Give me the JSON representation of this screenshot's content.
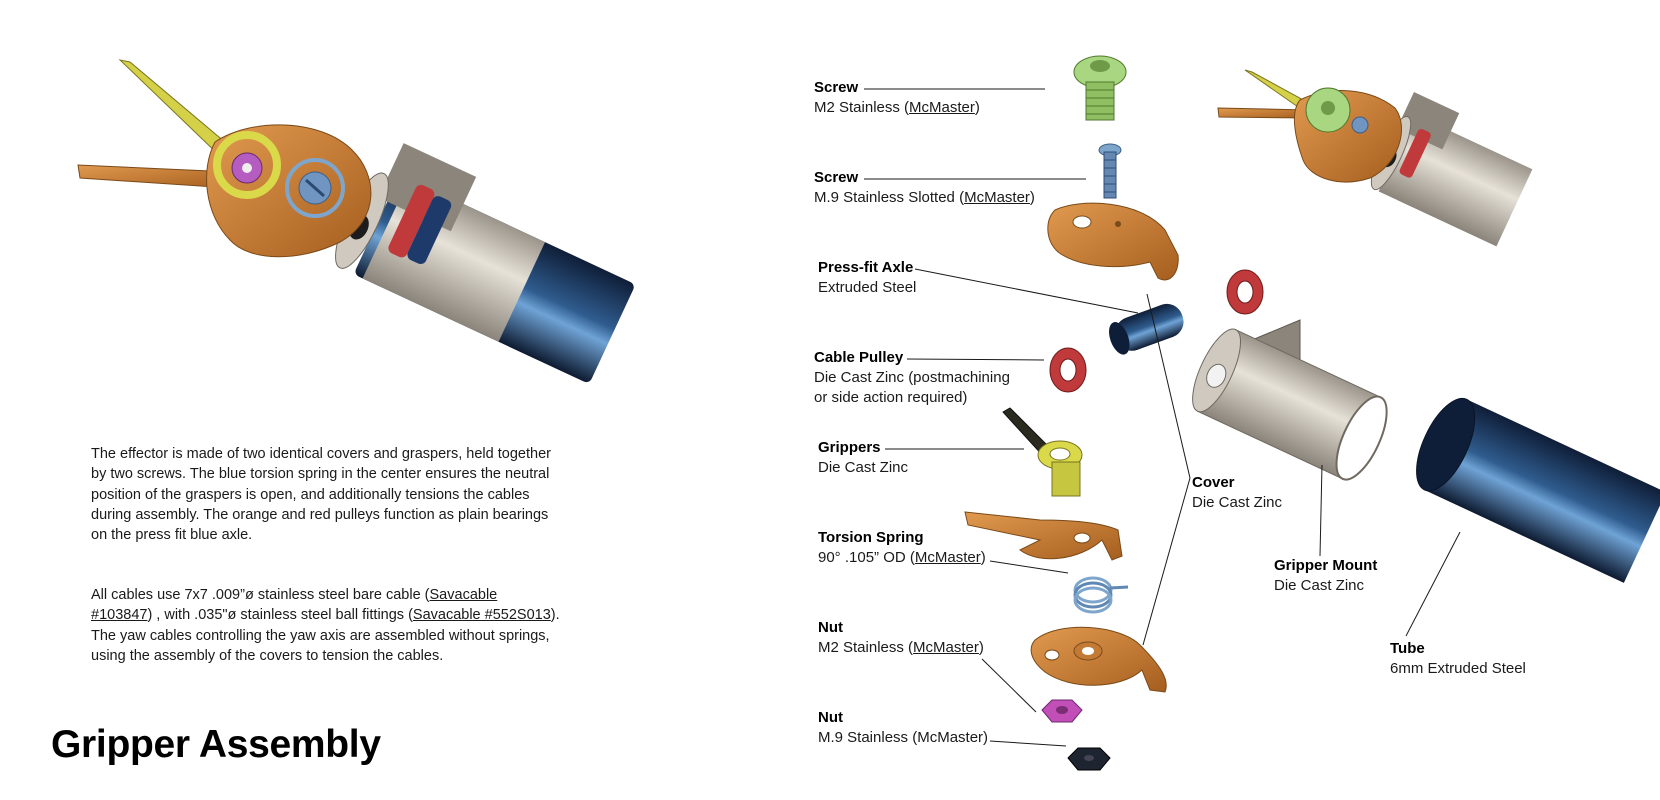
{
  "page": {
    "title": "Gripper Assembly",
    "paragraph1": "The effector is made of two identical covers and graspers, held together by two screws. The blue torsion spring in the center ensures the neutral position of the graspers is open, and additionally tensions the cables during assembly. The orange and red pulleys function as plain bearings on the press fit blue axle.",
    "paragraph2": {
      "t1": "All cables use 7x7 .009”ø stainless steel bare cable (",
      "link1": "Savacable #103847",
      "t2": ") , with .035\"ø stainless steel ball fittings (",
      "link2": "Savacable #552S013",
      "t3": "). The yaw cables controlling the yaw axis are assembled without springs, using the assembly of the covers to tension the cables."
    }
  },
  "labels": {
    "screw_m2": {
      "name": "Screw",
      "pre": "M2 Stainless (",
      "link": "McMaster",
      "post": ")"
    },
    "screw_m9": {
      "name": "Screw",
      "pre": "M.9 Stainless Slotted (",
      "link": "McMaster",
      "post": ")"
    },
    "axle": {
      "name": "Press-fit Axle",
      "desc": "Extruded Steel"
    },
    "pulley": {
      "name": "Cable Pulley",
      "desc": "Die Cast Zinc (postmachining or side action required)"
    },
    "grippers": {
      "name": "Grippers",
      "desc": "Die Cast Zinc"
    },
    "spring": {
      "name": "Torsion Spring",
      "pre": "90° .105” OD (",
      "link": "McMaster",
      "post": ")"
    },
    "nut_m2": {
      "name": "Nut",
      "pre": "M2 Stainless (",
      "link": "McMaster",
      "post": ")"
    },
    "nut_m9": {
      "name": "Nut",
      "desc": "M.9 Stainless (McMaster)"
    },
    "cover": {
      "name": "Cover",
      "desc": "Die Cast Zinc"
    },
    "mount": {
      "name": "Gripper Mount",
      "desc": "Die Cast Zinc"
    },
    "tube": {
      "name": "Tube",
      "desc": "6mm Extruded Steel"
    }
  },
  "colors": {
    "grasper_orange": "#c97a2e",
    "grasper_yellow": "#d9d94a",
    "pulley_red": "#c0393b",
    "spring_blue": "#7ea6cc",
    "screw_green": "#a9d681",
    "tube_navy": "#1b2e4e",
    "mount_silver": "#c8c2b8",
    "nut_magenta": "#c24fb8",
    "nut_black": "#1e2530"
  }
}
